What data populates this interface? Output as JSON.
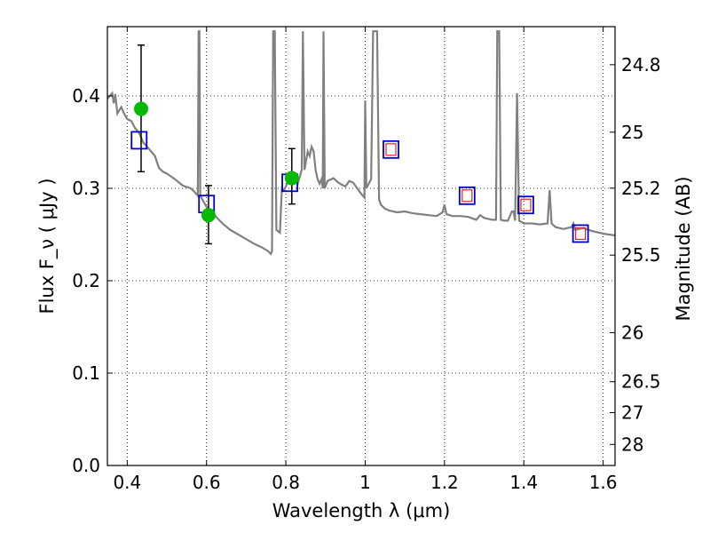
{
  "chart_data": {
    "type": "line",
    "xlabel": "Wavelength  λ (μm)",
    "ylabel": "Flux  F_ν  ( μJy )",
    "y2label": "Magnitude (AB)",
    "xlim": [
      0.35,
      1.63
    ],
    "ylim": [
      0.0,
      0.475
    ],
    "grid": true,
    "x_ticks": [
      0.4,
      0.6,
      0.8,
      1.0,
      1.2,
      1.4,
      1.6
    ],
    "x_tick_labels": [
      "0.4",
      "0.6",
      "0.8",
      "1",
      "1.2",
      "1.4",
      "1.6"
    ],
    "y_ticks": [
      0.0,
      0.1,
      0.2,
      0.3,
      0.4
    ],
    "y_tick_labels": [
      "0.0",
      "0.1",
      "0.2",
      "0.3",
      "0.4"
    ],
    "y2_ticks": [
      {
        "label": "24.8",
        "flux": 0.4338
      },
      {
        "label": "25",
        "flux": 0.3608
      },
      {
        "label": "25.2",
        "flux": 0.3002
      },
      {
        "label": "25.5",
        "flux": 0.2277
      },
      {
        "label": "26",
        "flux": 0.1437
      },
      {
        "label": "26.5",
        "flux": 0.0907
      },
      {
        "label": "27",
        "flux": 0.0572
      },
      {
        "label": "28",
        "flux": 0.0228
      }
    ],
    "colors": {
      "model": "#808080",
      "observed": "#00bb00",
      "synthetic": "#0000cc",
      "inner": "#dd2222"
    },
    "model_spectrum": [
      [
        0.35,
        0.397
      ],
      [
        0.362,
        0.403
      ],
      [
        0.366,
        0.392
      ],
      [
        0.37,
        0.402
      ],
      [
        0.375,
        0.381
      ],
      [
        0.385,
        0.388
      ],
      [
        0.392,
        0.381
      ],
      [
        0.4,
        0.375
      ],
      [
        0.41,
        0.373
      ],
      [
        0.42,
        0.365
      ],
      [
        0.43,
        0.36
      ],
      [
        0.44,
        0.35
      ],
      [
        0.45,
        0.345
      ],
      [
        0.46,
        0.34
      ],
      [
        0.47,
        0.335
      ],
      [
        0.48,
        0.322
      ],
      [
        0.49,
        0.318
      ],
      [
        0.5,
        0.316
      ],
      [
        0.52,
        0.31
      ],
      [
        0.54,
        0.303
      ],
      [
        0.56,
        0.3
      ],
      [
        0.57,
        0.296
      ],
      [
        0.578,
        0.292
      ],
      [
        0.58,
        0.47
      ],
      [
        0.582,
        0.47
      ],
      [
        0.584,
        0.292
      ],
      [
        0.6,
        0.28
      ],
      [
        0.62,
        0.271
      ],
      [
        0.64,
        0.262
      ],
      [
        0.66,
        0.255
      ],
      [
        0.68,
        0.25
      ],
      [
        0.7,
        0.245
      ],
      [
        0.72,
        0.24
      ],
      [
        0.74,
        0.236
      ],
      [
        0.755,
        0.232
      ],
      [
        0.762,
        0.229
      ],
      [
        0.765,
        0.232
      ],
      [
        0.768,
        0.47
      ],
      [
        0.772,
        0.47
      ],
      [
        0.776,
        0.255
      ],
      [
        0.785,
        0.252
      ],
      [
        0.79,
        0.3
      ],
      [
        0.795,
        0.298
      ],
      [
        0.8,
        0.302
      ],
      [
        0.81,
        0.313
      ],
      [
        0.82,
        0.31
      ],
      [
        0.83,
        0.305
      ],
      [
        0.84,
        0.32
      ],
      [
        0.843,
        0.47
      ],
      [
        0.847,
        0.32
      ],
      [
        0.855,
        0.34
      ],
      [
        0.86,
        0.335
      ],
      [
        0.865,
        0.345
      ],
      [
        0.87,
        0.34
      ],
      [
        0.875,
        0.32
      ],
      [
        0.88,
        0.31
      ],
      [
        0.885,
        0.305
      ],
      [
        0.89,
        0.31
      ],
      [
        0.893,
        0.3
      ],
      [
        0.895,
        0.47
      ],
      [
        0.898,
        0.3
      ],
      [
        0.905,
        0.308
      ],
      [
        0.92,
        0.311
      ],
      [
        0.93,
        0.307
      ],
      [
        0.94,
        0.304
      ],
      [
        0.95,
        0.302
      ],
      [
        0.96,
        0.308
      ],
      [
        0.97,
        0.306
      ],
      [
        0.98,
        0.3
      ],
      [
        0.99,
        0.294
      ],
      [
        0.998,
        0.29
      ],
      [
        1.0,
        0.395
      ],
      [
        1.003,
        0.3
      ],
      [
        1.015,
        0.31
      ],
      [
        1.02,
        0.47
      ],
      [
        1.03,
        0.47
      ],
      [
        1.035,
        0.288
      ],
      [
        1.04,
        0.282
      ],
      [
        1.05,
        0.278
      ],
      [
        1.06,
        0.276
      ],
      [
        1.08,
        0.274
      ],
      [
        1.1,
        0.275
      ],
      [
        1.12,
        0.273
      ],
      [
        1.14,
        0.272
      ],
      [
        1.16,
        0.271
      ],
      [
        1.18,
        0.27
      ],
      [
        1.195,
        0.274
      ],
      [
        1.2,
        0.282
      ],
      [
        1.205,
        0.272
      ],
      [
        1.22,
        0.27
      ],
      [
        1.24,
        0.27
      ],
      [
        1.26,
        0.269
      ],
      [
        1.28,
        0.266
      ],
      [
        1.29,
        0.271
      ],
      [
        1.3,
        0.268
      ],
      [
        1.32,
        0.266
      ],
      [
        1.33,
        0.266
      ],
      [
        1.333,
        0.47
      ],
      [
        1.338,
        0.47
      ],
      [
        1.342,
        0.266
      ],
      [
        1.35,
        0.265
      ],
      [
        1.36,
        0.265
      ],
      [
        1.37,
        0.275
      ],
      [
        1.374,
        0.275
      ],
      [
        1.378,
        0.265
      ],
      [
        1.383,
        0.403
      ],
      [
        1.388,
        0.265
      ],
      [
        1.4,
        0.262
      ],
      [
        1.42,
        0.262
      ],
      [
        1.44,
        0.261
      ],
      [
        1.46,
        0.262
      ],
      [
        1.465,
        0.298
      ],
      [
        1.47,
        0.262
      ],
      [
        1.48,
        0.258
      ],
      [
        1.5,
        0.256
      ],
      [
        1.52,
        0.258
      ],
      [
        1.525,
        0.262
      ],
      [
        1.53,
        0.255
      ],
      [
        1.55,
        0.257
      ],
      [
        1.57,
        0.254
      ],
      [
        1.6,
        0.251
      ],
      [
        1.63,
        0.249
      ]
    ],
    "observed": [
      {
        "x": 0.435,
        "y": 0.386,
        "yerr_low": 0.318,
        "yerr_high": 0.455
      },
      {
        "x": 0.605,
        "y": 0.271,
        "yerr_low": 0.24,
        "yerr_high": 0.303
      },
      {
        "x": 0.815,
        "y": 0.311,
        "yerr_low": 0.283,
        "yerr_high": 0.343
      }
    ],
    "synthetic": [
      {
        "x": 0.43,
        "y": 0.352,
        "style": "blue"
      },
      {
        "x": 0.6,
        "y": 0.283,
        "style": "blue"
      },
      {
        "x": 0.81,
        "y": 0.306,
        "style": "blue"
      },
      {
        "x": 1.065,
        "y": 0.342,
        "style": "blue-red"
      },
      {
        "x": 1.257,
        "y": 0.292,
        "style": "blue-red"
      },
      {
        "x": 1.405,
        "y": 0.282,
        "style": "blue-red"
      },
      {
        "x": 1.543,
        "y": 0.251,
        "style": "blue-red"
      }
    ]
  }
}
